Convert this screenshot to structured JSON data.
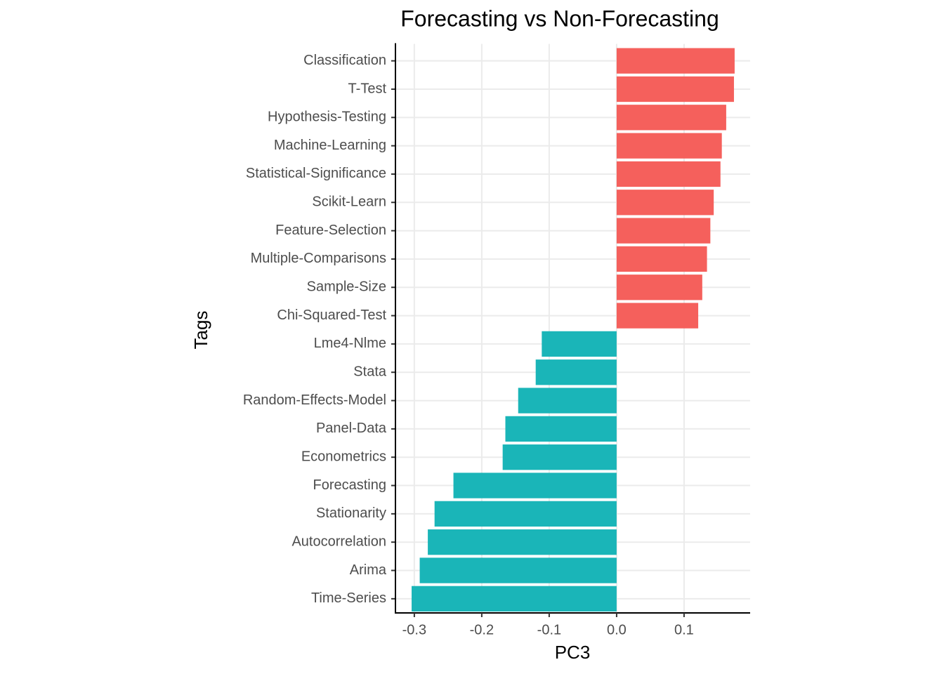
{
  "chart_data": {
    "type": "barh",
    "title": "Forecasting vs Non-Forecasting",
    "x_label": "PC3",
    "y_label": "Tags",
    "categories": [
      "Classification",
      "T-Test",
      "Hypothesis-Testing",
      "Machine-Learning",
      "Statistical-Significance",
      "Scikit-Learn",
      "Feature-Selection",
      "Multiple-Comparisons",
      "Sample-Size",
      "Chi-Squared-Test",
      "Lme4-Nlme",
      "Stata",
      "Random-Effects-Model",
      "Panel-Data",
      "Econometrics",
      "Forecasting",
      "Stationarity",
      "Autocorrelation",
      "Arima",
      "Time-Series"
    ],
    "values": [
      0.175,
      0.174,
      0.1625,
      0.156,
      0.154,
      0.144,
      0.139,
      0.134,
      0.127,
      0.121,
      -0.111,
      -0.12,
      -0.146,
      -0.165,
      -0.169,
      -0.242,
      -0.27,
      -0.28,
      -0.292,
      -0.304
    ],
    "colors": [
      "#f5605c",
      "#f5605c",
      "#f5605c",
      "#f5605c",
      "#f5605c",
      "#f5605c",
      "#f5605c",
      "#f5605c",
      "#f5605c",
      "#f5605c",
      "#1ab5b8",
      "#1ab5b8",
      "#1ab5b8",
      "#1ab5b8",
      "#1ab5b8",
      "#1ab5b8",
      "#1ab5b8",
      "#1ab5b8",
      "#1ab5b8",
      "#1ab5b8"
    ],
    "xlim": [
      -0.328,
      0.198
    ],
    "xticks": [
      -0.3,
      -0.2,
      -0.1,
      {
        "value": 0,
        "label": "0.0"
      },
      0.1
    ],
    "grid": true
  }
}
